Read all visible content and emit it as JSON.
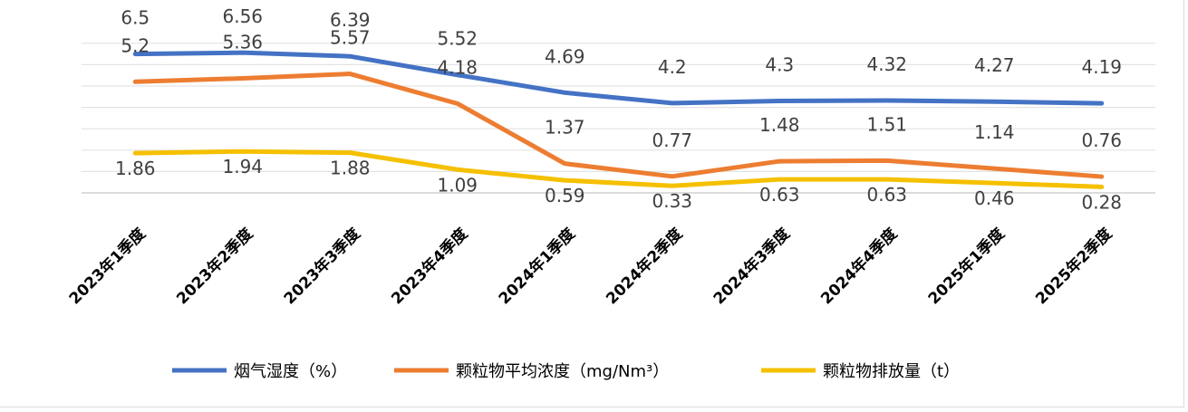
{
  "chart_data": {
    "type": "line",
    "categories": [
      "2023年1季度",
      "2023年2季度",
      "2023年3季度",
      "2023年4季度",
      "2024年1季度",
      "2024年2季度",
      "2024年3季度",
      "2024年4季度",
      "2025年1季度",
      "2025年2季度"
    ],
    "series": [
      {
        "name": "烟气湿度（%）",
        "color": "#4472c4",
        "values": [
          6.5,
          6.56,
          6.39,
          5.52,
          4.69,
          4.2,
          4.3,
          4.32,
          4.27,
          4.19
        ]
      },
      {
        "name": "颗粒物平均浓度（mg/Nm³）",
        "color": "#ed7d31",
        "values": [
          5.2,
          5.36,
          5.57,
          4.18,
          1.37,
          0.77,
          1.48,
          1.51,
          1.14,
          0.76
        ]
      },
      {
        "name": "颗粒物排放量（t）",
        "color": "#f5c000",
        "values": [
          1.86,
          1.94,
          1.88,
          1.09,
          0.59,
          0.33,
          0.63,
          0.63,
          0.46,
          0.28
        ]
      }
    ],
    "ylim": [
      0,
      7
    ],
    "grid": true,
    "legend": "bottom",
    "data_labels": true
  }
}
